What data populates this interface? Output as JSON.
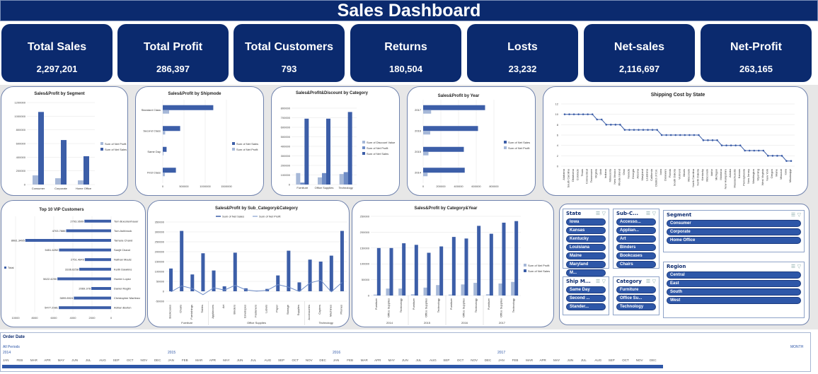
{
  "header": {
    "title": "Sales Dashboard"
  },
  "kpis": [
    {
      "label": "Total Sales",
      "value": "2,297,201"
    },
    {
      "label": "Total Profit",
      "value": "286,397"
    },
    {
      "label": "Total Customers",
      "value": "793"
    },
    {
      "label": "Returns",
      "value": "180,504"
    },
    {
      "label": "Losts",
      "value": "23,232"
    },
    {
      "label": "Net-sales",
      "value": "2,116,697"
    },
    {
      "label": "Net-Profit",
      "value": "263,165"
    }
  ],
  "chart_data": [
    {
      "id": "segment",
      "type": "bar",
      "title": "Sales&Profit by Segment",
      "categories": [
        "Consumer",
        "Corporate",
        "Home Office"
      ],
      "series": [
        {
          "name": "Sum of Net Profit",
          "values": [
            134000,
            92000,
            61000
          ]
        },
        {
          "name": "Sum of Net Sales",
          "values": [
            1062000,
            651000,
            414000
          ]
        }
      ],
      "ylim": [
        0,
        1200000
      ],
      "yticks": [
        "1200000",
        "1000000",
        "800000",
        "600000",
        "400000",
        "200000",
        "0"
      ],
      "colors": [
        "#a6b8d8",
        "#3c5ea8"
      ]
    },
    {
      "id": "shipmode",
      "type": "bar",
      "orientation": "horizontal",
      "title": "Sales&Profit by Shipmode",
      "categories": [
        "Standard Class",
        "Second Class",
        "Same Day",
        "First Class"
      ],
      "series": [
        {
          "name": "Sum of Net Sales",
          "values": [
            1190000,
            410000,
            90000,
            310000
          ]
        },
        {
          "name": "Sum of Net Profit",
          "values": [
            150000,
            57000,
            16000,
            49000
          ]
        }
      ],
      "xlim": [
        0,
        1500000
      ],
      "xticks": [
        "0",
        "500000",
        "1000000",
        "1500000"
      ],
      "colors": [
        "#3c5ea8",
        "#a6b8d8"
      ]
    },
    {
      "id": "discount",
      "type": "bar",
      "title": "Sales&Profit&Discount by Category",
      "categories": [
        "Furniture",
        "Office Supplies",
        "Technology"
      ],
      "series": [
        {
          "name": "Sum of Discount Value",
          "values": [
            120000,
            75000,
            110000
          ]
        },
        {
          "name": "Sum of Net Profit",
          "values": [
            20000,
            120000,
            130000
          ]
        },
        {
          "name": "Sum of Net Sales",
          "values": [
            690000,
            690000,
            760000
          ]
        }
      ],
      "ylim": [
        0,
        800000
      ],
      "yticks": [
        "800000",
        "700000",
        "600000",
        "500000",
        "400000",
        "300000",
        "200000",
        "100000",
        "0"
      ],
      "colors": [
        "#a6b8d8",
        "#6e8cc6",
        "#3c5ea8"
      ]
    },
    {
      "id": "year",
      "type": "bar",
      "orientation": "horizontal",
      "title": "Sales&Profit by Year",
      "categories": [
        "2017",
        "2016",
        "2015",
        "2014"
      ],
      "series": [
        {
          "name": "Sum of Net Sales",
          "values": [
            700000,
            620000,
            460000,
            470000
          ]
        },
        {
          "name": "Sum of Net Profit",
          "values": [
            90000,
            80000,
            60000,
            50000
          ]
        }
      ],
      "xlim": [
        0,
        800000
      ],
      "xticks": [
        "0",
        "200000",
        "400000",
        "600000",
        "800000"
      ],
      "colors": [
        "#3c5ea8",
        "#a6b8d8"
      ]
    },
    {
      "id": "shipping",
      "type": "line",
      "title": "Shipping Cost by State",
      "categories": [
        "Alabama",
        "South Carolina",
        "Oklahoma",
        "Colorado",
        "Texas",
        "Connecticut",
        "Tennessee",
        "Virginia",
        "Utah",
        "Indiana",
        "Minnesota",
        "New Mexico",
        "Rhode Island",
        "Ohio",
        "Nevada",
        "Georgia",
        "Arizona",
        "Maryland",
        "Louisiana",
        "California",
        "District of Col.",
        "Iowa",
        "Delaware",
        "Florida",
        "South Dakota",
        "Vermont",
        "Illinois",
        "Wisconsin",
        "North Carolina",
        "North Dakota",
        "Kentucky",
        "Wisconsin",
        "Idaho",
        "Michigan",
        "Montana",
        "New Hampshire",
        "Alaska",
        "Massachusetts",
        "Kansas",
        "Pennsylvania",
        "New Jersey",
        "Washington",
        "Wyoming",
        "West Virginia",
        "New York",
        "Oregon",
        "Maine",
        "Missouri",
        "Iowa",
        "Mississippi"
      ],
      "values": [
        10,
        10,
        10,
        10,
        10,
        10,
        10,
        9,
        9,
        8,
        8,
        8,
        8,
        7,
        7,
        7,
        7,
        7,
        7,
        7,
        7,
        6,
        6,
        6,
        6,
        6,
        6,
        6,
        6,
        6,
        5,
        5,
        5,
        5,
        4,
        4,
        4,
        4,
        4,
        3,
        3,
        3,
        3,
        3,
        2,
        2,
        2,
        2,
        1,
        1
      ],
      "ylim": [
        0,
        12
      ],
      "yticks": [
        "12",
        "10",
        "8",
        "6",
        "4",
        "2",
        "0"
      ],
      "colors": [
        "#3c5ea8"
      ]
    },
    {
      "id": "vip",
      "type": "bar",
      "orientation": "horizontal",
      "title": "Top 10 VIP Customers",
      "categories": [
        "Tom Boeckenhauer",
        "Tom Ashbrook",
        "Tamara Chand",
        "Sanjit Chand",
        "Nathan Mautz",
        "Keith Dawkins",
        "Hunter Lopez",
        "Daniel Raglin",
        "Christopher Martinez",
        "Adrian Barton"
      ],
      "values": [
        2793.3609,
        4703.7886,
        8981.3495,
        5451.6252,
        2751.4849,
        3336.6258,
        5622.429,
        2069.378,
        3899.8924,
        5477.2981
      ],
      "value_labels": [
        "2793.3609",
        "4703.7886",
        "8981.3495",
        "5451.6252",
        "2751.4849",
        "3336.6258",
        "5622.4290",
        "2069.378",
        "3899.8924",
        "5477.2981"
      ],
      "xlim": [
        0,
        10000
      ],
      "xticks": [
        "10000",
        "8000",
        "6000",
        "4000",
        "2000",
        "0"
      ],
      "legend": [
        "Total"
      ],
      "colors": [
        "#3c5ea8"
      ]
    },
    {
      "id": "subcat",
      "type": "bar",
      "title": "Sales&Profit by Sub_Category&Category",
      "legend": [
        "Sum of Net Sales",
        "Sum of Net Profit"
      ],
      "categories": [
        "Bookcases",
        "Chairs",
        "Furnishings",
        "Tables",
        "Appliances",
        "Art",
        "Binders",
        "Envelopes",
        "Fasteners",
        "Labels",
        "Paper",
        "Storage",
        "Supplies",
        "Accessories",
        "Copiers",
        "Machines",
        "Phones"
      ],
      "groups": [
        {
          "label": "Furniture",
          "count": 4
        },
        {
          "label": "Office Supplies",
          "count": 9
        },
        {
          "label": "Technology",
          "count": 4
        }
      ],
      "series": [
        {
          "name": "Sum of Net Sales",
          "values": [
            115000,
            305000,
            85000,
            192000,
            105000,
            25000,
            195000,
            15000,
            3000,
            12000,
            80000,
            205000,
            45000,
            160000,
            150000,
            180000,
            305000
          ]
        },
        {
          "name": "Sum of Net Profit",
          "values": [
            -3000,
            27000,
            14000,
            -17000,
            18000,
            6000,
            30000,
            7000,
            1000,
            5000,
            34000,
            21000,
            -1000,
            42000,
            56000,
            -3000,
            45000
          ]
        }
      ],
      "ylim": [
        -50000,
        350000
      ],
      "yticks": [
        "350000",
        "300000",
        "250000",
        "200000",
        "150000",
        "100000",
        "50000",
        "0",
        "-50000"
      ],
      "colors": [
        "#3c5ea8",
        "#6e8cc6"
      ]
    },
    {
      "id": "catyear",
      "type": "bar",
      "title": "Sales&Profit by Category&Year",
      "categories": [
        "Furniture",
        "Office Supplies",
        "Technology",
        "Furniture",
        "Office Supplies",
        "Technology",
        "Furniture",
        "Office Supplies",
        "Technology",
        "Furniture",
        "Office Supplies",
        "Technology"
      ],
      "groups": [
        {
          "label": "2014",
          "count": 3
        },
        {
          "label": "2015",
          "count": 3
        },
        {
          "label": "2016",
          "count": 3
        },
        {
          "label": "2017",
          "count": 3
        }
      ],
      "series": [
        {
          "name": "Sum of Net Profit",
          "values": [
            3000,
            22000,
            22000,
            4000,
            25000,
            33000,
            3000,
            35000,
            40000,
            4000,
            38000,
            43000
          ]
        },
        {
          "name": "Sum of Net Sales",
          "values": [
            150000,
            150000,
            165000,
            160000,
            135000,
            155000,
            185000,
            180000,
            220000,
            195000,
            230000,
            235000
          ]
        }
      ],
      "ylim": [
        0,
        250000
      ],
      "yticks": [
        "250000",
        "200000",
        "150000",
        "100000",
        "50000",
        "0"
      ],
      "colors": [
        "#a6b8d8",
        "#3c5ea8"
      ]
    }
  ],
  "slicers": [
    {
      "id": "state",
      "title": "State",
      "items": [
        "Iowa",
        "Kansas",
        "Kentucky",
        "Louisiana",
        "Maine",
        "Maryland",
        "M..."
      ]
    },
    {
      "id": "subcat",
      "title": "Sub-C...",
      "items": [
        "Accesso...",
        "Applian...",
        "Art",
        "Binders",
        "Bookcases",
        "Chairs"
      ]
    },
    {
      "id": "segment",
      "title": "Segment",
      "items": [
        "Consumer",
        "Corporate",
        "Home Office"
      ]
    },
    {
      "id": "shipmode",
      "title": "Ship M...",
      "items": [
        "Same Day",
        "Second ...",
        "Stander..."
      ]
    },
    {
      "id": "category",
      "title": "Category",
      "items": [
        "Furniture",
        "Office Su...",
        "Technology"
      ]
    },
    {
      "id": "region",
      "title": "Region",
      "items": [
        "Central",
        "East",
        "South",
        "West"
      ]
    }
  ],
  "timeline": {
    "title": "Order Date",
    "periods_label": "All Periods",
    "unit_label": "MONTH",
    "years": [
      "2014",
      "2015",
      "2016",
      "2017"
    ],
    "months": [
      "JAN",
      "FEB",
      "MAR",
      "APR",
      "MAY",
      "JUN",
      "JUL",
      "AUG",
      "SEP",
      "OCT",
      "NOV",
      "DEC"
    ]
  }
}
